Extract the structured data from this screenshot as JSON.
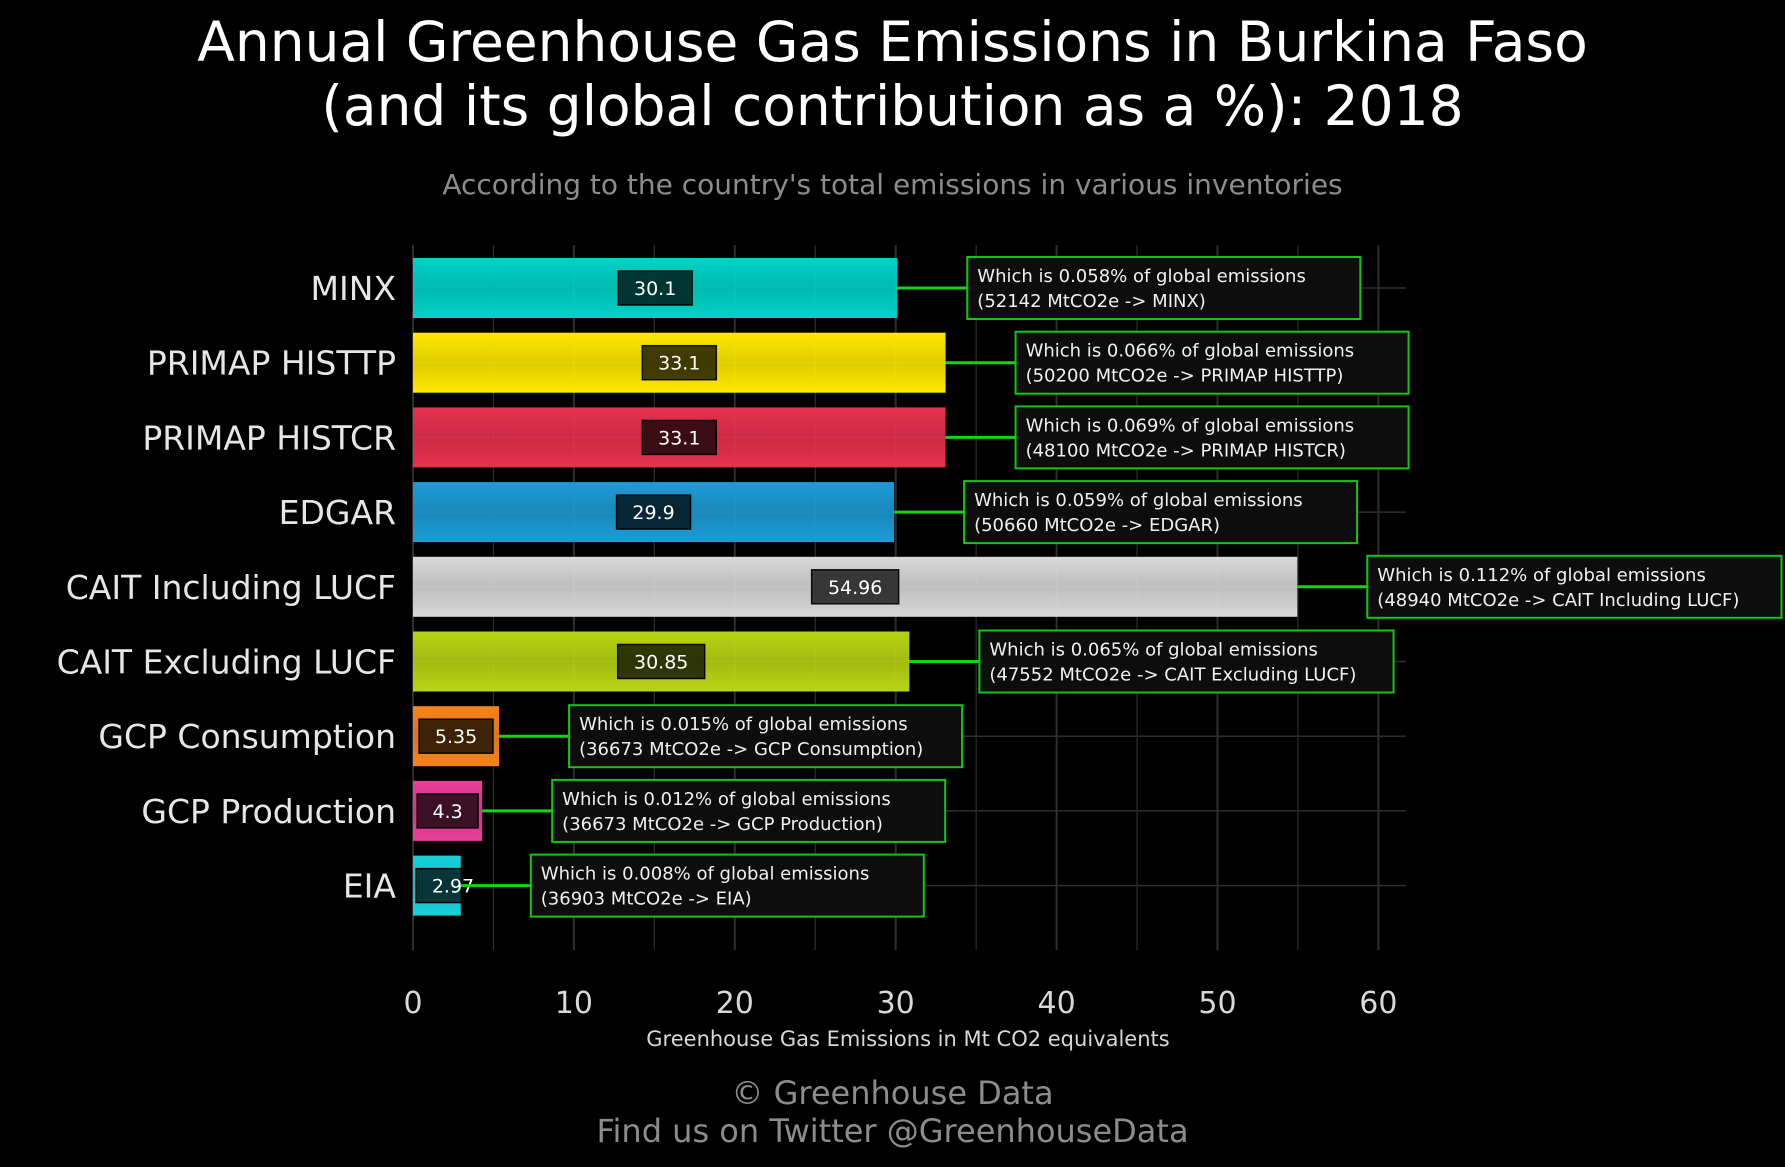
{
  "title_line1": "Annual Greenhouse Gas Emissions in Burkina Faso",
  "title_line2": "(and its global contribution as a %): 2018",
  "subtitle": "According to the country's total emissions in various inventories",
  "footer_line1": "© Greenhouse Data",
  "footer_line2": "Find us on Twitter @GreenhouseData",
  "chart_data": {
    "type": "bar",
    "orientation": "horizontal",
    "xlabel": "Greenhouse Gas Emissions in Mt CO2 equivalents",
    "ylabel": "",
    "xlim": [
      0,
      62
    ],
    "xticks": [
      0,
      10,
      20,
      30,
      40,
      50,
      60
    ],
    "grid": true,
    "legend": "none",
    "categories": [
      "MINX",
      "PRIMAP HISTTP",
      "PRIMAP HISTCR",
      "EDGAR",
      "CAIT Including LUCF",
      "CAIT Excluding LUCF",
      "GCP Consumption",
      "GCP Production",
      "EIA"
    ],
    "values": [
      30.1,
      33.1,
      33.1,
      29.9,
      54.96,
      30.85,
      5.35,
      4.3,
      2.97
    ],
    "value_labels": [
      "30.1",
      "33.1",
      "33.1",
      "29.9",
      "54.96",
      "30.85",
      "5.35",
      "4.3",
      "2.97"
    ],
    "bar_colors": [
      "#00d2c8",
      "#ffe800",
      "#e8304f",
      "#1d9bd6",
      "#d8d8d8",
      "#b8d414",
      "#f7841c",
      "#e8409a",
      "#19d2dc"
    ],
    "annotations": [
      [
        "Which is 0.058% of global emissions",
        "(52142 MtCO2e -> MINX)"
      ],
      [
        "Which is 0.066% of global emissions",
        "(50200 MtCO2e -> PRIMAP HISTTP)"
      ],
      [
        "Which is 0.069% of global emissions",
        "(48100 MtCO2e -> PRIMAP HISTCR)"
      ],
      [
        "Which is 0.059% of global emissions",
        "(50660 MtCO2e -> EDGAR)"
      ],
      [
        "Which is 0.112% of global emissions",
        "(48940 MtCO2e -> CAIT Including LUCF)"
      ],
      [
        "Which is 0.065% of global emissions",
        "(47552 MtCO2e -> CAIT Excluding LUCF)"
      ],
      [
        "Which is 0.015% of global emissions",
        "(36673 MtCO2e -> GCP Consumption)"
      ],
      [
        "Which is 0.012% of global emissions",
        "(36673 MtCO2e -> GCP Production)"
      ],
      [
        "Which is 0.008% of global emissions",
        "(36903 MtCO2e -> EIA)"
      ]
    ],
    "colors": {
      "grid": "#2e2e2e",
      "annotation_border": "#11c811",
      "annotation_fill": "#0d0d0d",
      "connector": "#14d414",
      "tick_text": "#d8d8d8",
      "category_text": "#e6e6e6"
    }
  }
}
